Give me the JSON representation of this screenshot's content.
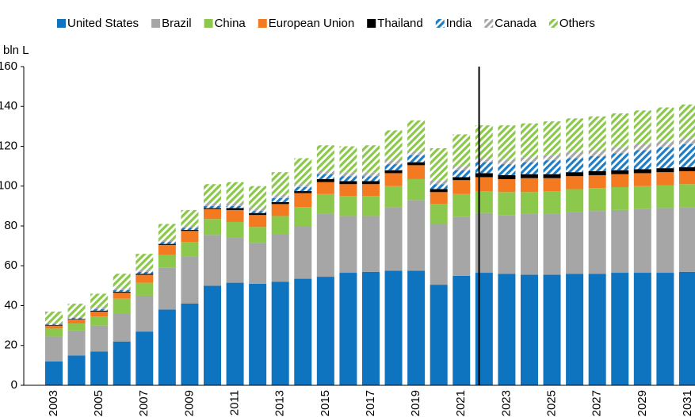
{
  "chart_data": {
    "type": "stacked_bar",
    "y_label": "bln L",
    "categories": [
      "2003",
      null,
      "2005",
      null,
      "2007",
      null,
      "2009",
      null,
      "2011",
      null,
      "2013",
      null,
      "2015",
      null,
      "2017",
      null,
      "2019",
      null,
      "2021",
      null,
      "2023",
      null,
      "2025",
      null,
      "2027",
      null,
      "2029",
      null,
      "2031"
    ],
    "ylim": [
      0,
      160
    ],
    "yticks": [
      0,
      20,
      40,
      60,
      80,
      100,
      120,
      140,
      160
    ],
    "legend": "top",
    "series": [
      {
        "name": "United States",
        "color": "#0f74c0",
        "values": [
          12,
          15,
          17,
          22,
          27,
          38,
          41,
          50,
          51.5,
          51,
          52,
          53.5,
          54.5,
          56.5,
          57,
          57.5,
          57.5,
          50.5,
          55,
          56.5,
          56,
          55.5,
          55.5,
          56,
          56,
          56.5,
          56.5,
          56.5,
          57
        ]
      },
      {
        "name": "Brazil",
        "color": "#a6a6a6",
        "values": [
          12.5,
          12.5,
          13,
          14,
          18,
          21,
          23.5,
          25.5,
          22.5,
          20.5,
          24,
          26.5,
          31.5,
          28.5,
          28,
          32,
          35.5,
          30.5,
          29.5,
          30,
          29.5,
          30.5,
          30.5,
          31,
          31.5,
          31.5,
          32,
          32.5,
          32.5
        ]
      },
      {
        "name": "China",
        "color": "#8cc84b",
        "values": [
          4,
          3.5,
          4.5,
          7.5,
          6.5,
          6.5,
          7.5,
          8,
          8,
          8,
          9,
          9.5,
          10,
          10,
          10,
          10.5,
          10.5,
          10,
          11.5,
          11,
          11.5,
          11,
          11.5,
          11.5,
          11.5,
          11.5,
          11.5,
          11.5,
          11.5
        ]
      },
      {
        "name": "European Union",
        "color": "#f47a22",
        "values": [
          1.5,
          2,
          2.5,
          3,
          4,
          5,
          5.5,
          5,
          6,
          6,
          6,
          7,
          6,
          6,
          6,
          6.5,
          7,
          6,
          7,
          7,
          6.5,
          7,
          6.5,
          6.5,
          6.5,
          6.5,
          6.5,
          6.5,
          6.5
        ]
      },
      {
        "name": "Thailand",
        "color": "#000000",
        "values": [
          0.3,
          0.3,
          0.5,
          0.5,
          0.5,
          0.5,
          0.5,
          0.5,
          1,
          1,
          1,
          1,
          1.5,
          1.5,
          1.5,
          1.5,
          1.5,
          1.5,
          1.5,
          2,
          2,
          2,
          2,
          2,
          2,
          2,
          2,
          2,
          2
        ]
      },
      {
        "name": "India",
        "color": "#1f7dc4",
        "hatch": true,
        "values": [
          0.5,
          0.5,
          0.7,
          0.8,
          1,
          1,
          1,
          1,
          1,
          1,
          2,
          2,
          2.5,
          2.5,
          2.5,
          3,
          3.5,
          2.5,
          3.5,
          5.5,
          5.5,
          6,
          7,
          7,
          7.5,
          8.5,
          9.5,
          10.5,
          11.5
        ]
      },
      {
        "name": "Canada",
        "color": "#a6a6a6",
        "hatch": true,
        "values": [
          0.5,
          0.7,
          0.8,
          0.9,
          1,
          1,
          1,
          1.5,
          1.5,
          1.5,
          2,
          1.5,
          1.5,
          2,
          2,
          2,
          2,
          2,
          2,
          2,
          2.5,
          2.5,
          2.5,
          3,
          3,
          3,
          3,
          3,
          3
        ]
      },
      {
        "name": "Others",
        "color": "#8cc84b",
        "hatch": true,
        "values": [
          5.7,
          6.5,
          7,
          7.3,
          8,
          8,
          8,
          9.5,
          10.5,
          11,
          11,
          13,
          13,
          13,
          13.5,
          15,
          15.5,
          16,
          16,
          16.5,
          17,
          17,
          17,
          17,
          17,
          17,
          17,
          17,
          17
        ]
      }
    ]
  }
}
